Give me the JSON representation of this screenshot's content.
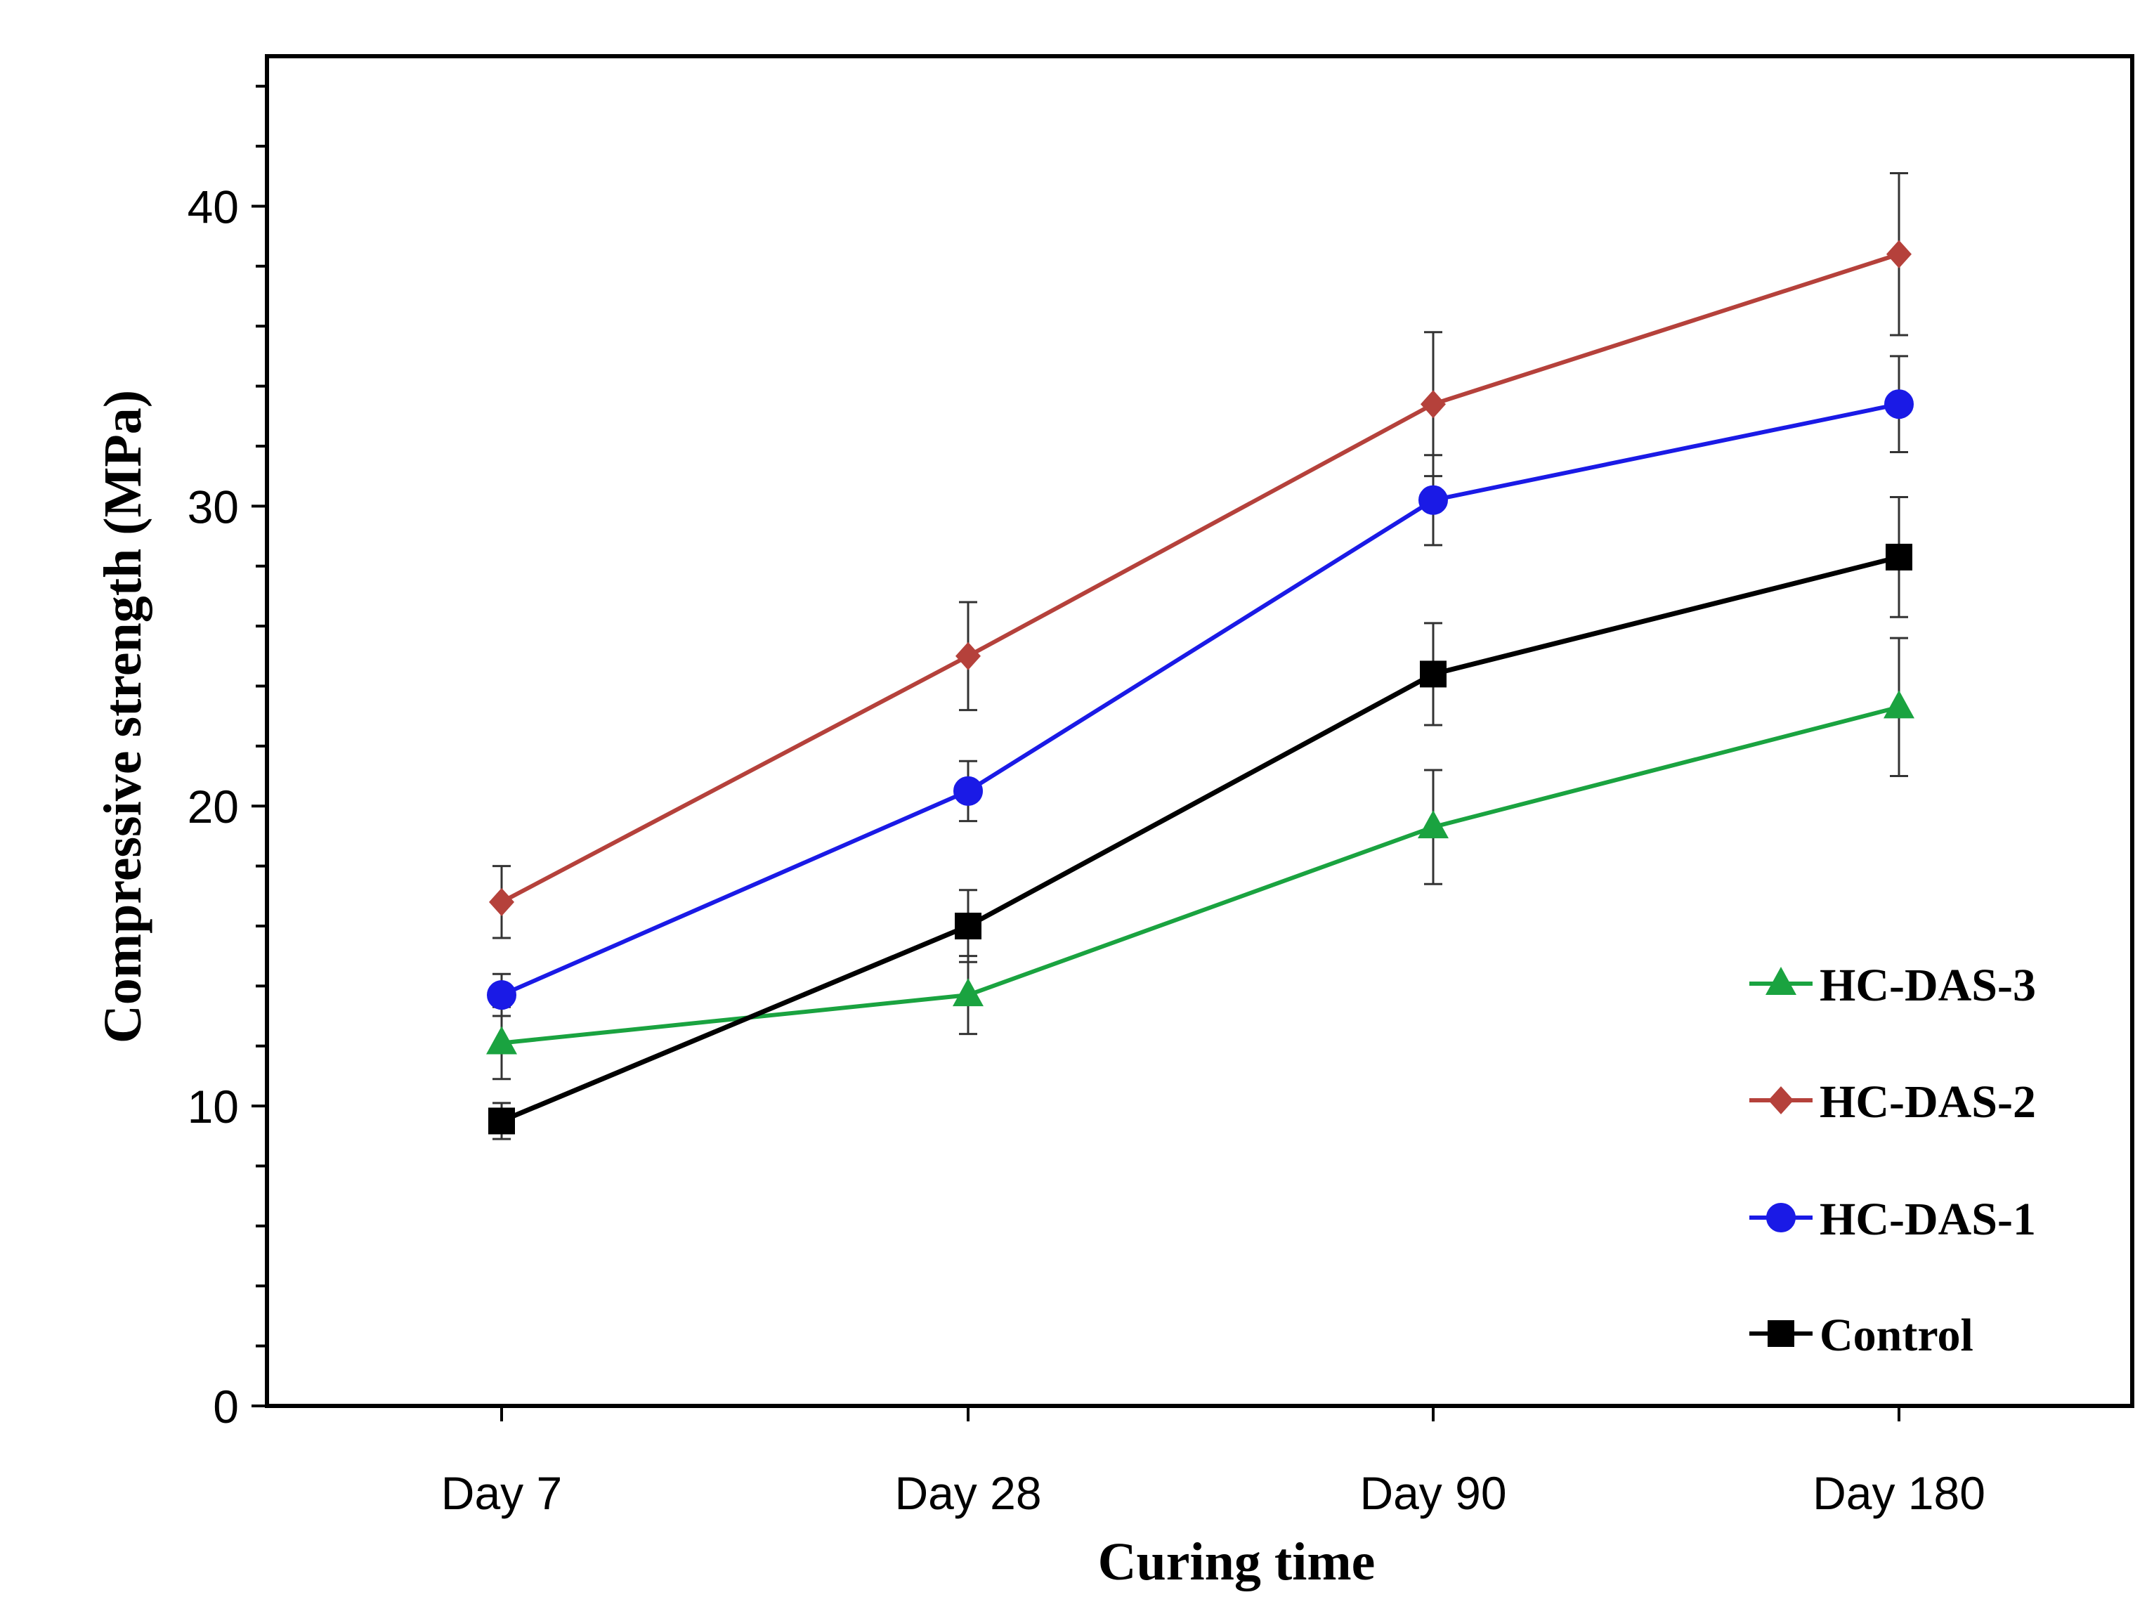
{
  "chart_data": {
    "type": "line",
    "title": "",
    "xlabel": "Curing time",
    "ylabel": "Compressive strength (MPa)",
    "categories": [
      "Day 7",
      "Day 28",
      "Day 90",
      "Day 180"
    ],
    "ylim": [
      0,
      45
    ],
    "yticks": [
      0,
      10,
      20,
      30,
      40
    ],
    "ytick_labels": [
      "0",
      "10",
      "20",
      "30",
      "40"
    ],
    "minor_ytick_step": 2,
    "grid": false,
    "legend_position": "bottom-right",
    "error_bars": true,
    "series": [
      {
        "name": "HC-DAS-3",
        "color": "#1aa340",
        "marker": "triangle",
        "values": [
          12.1,
          13.7,
          19.3,
          23.3
        ],
        "errors": [
          1.2,
          1.3,
          1.9,
          2.3
        ]
      },
      {
        "name": "HC-DAS-2",
        "color": "#b5413b",
        "marker": "diamond",
        "values": [
          16.8,
          25.0,
          33.4,
          38.4
        ],
        "errors": [
          1.2,
          1.8,
          2.4,
          2.7
        ]
      },
      {
        "name": "HC-DAS-1",
        "color": "#1a1ae6",
        "marker": "circle",
        "values": [
          13.7,
          20.5,
          30.2,
          33.4
        ],
        "errors": [
          0.7,
          1.0,
          1.5,
          1.6
        ]
      },
      {
        "name": "Control",
        "color": "#000000",
        "marker": "square",
        "values": [
          9.5,
          16.0,
          24.4,
          28.3
        ],
        "errors": [
          0.6,
          1.2,
          1.7,
          2.0
        ]
      }
    ]
  }
}
